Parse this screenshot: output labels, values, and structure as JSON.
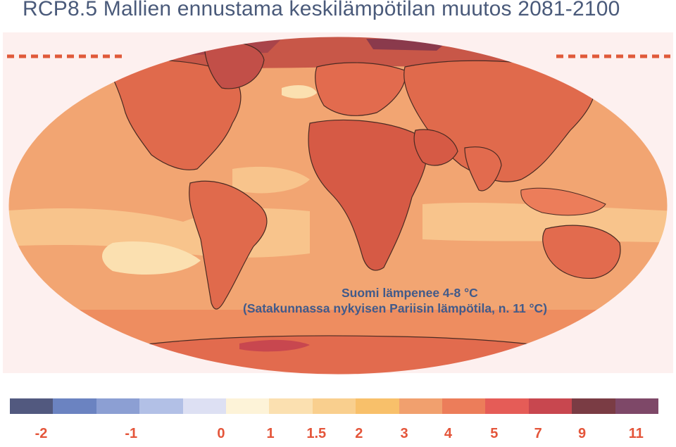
{
  "title": "RCP8.5 Mallien ennustama keskilämpötilan muutos 2081-2100",
  "annotation": {
    "line1": "Suomi lämpenee 4-8 °C",
    "line2": "(Satakunnassa nykyisen Pariisin lämpötila, n. 11 °C)"
  },
  "colors": {
    "ocean_warm": "#f8c48c",
    "ocean_mid": "#f3a877",
    "land_base": "#e8734f",
    "land_hot": "#d75a44",
    "arctic": "#8a3a4c",
    "outline": "#4a2a22",
    "dash": "#e05a3a",
    "page_pink": "#fdf0ef"
  },
  "legend": {
    "swatches": [
      "#52597f",
      "#6b83c1",
      "#8c9fd3",
      "#b2c0e6",
      "#dde0f3",
      "#fdf3d8",
      "#fbe0b0",
      "#f9cf8e",
      "#f8c06a",
      "#f1a06e",
      "#ec7d5a",
      "#e55c57",
      "#c8474f",
      "#7a3c44",
      "#7e4868"
    ],
    "ticks": [
      {
        "label": "-2",
        "pos": 0.061
      },
      {
        "label": "-1",
        "pos": 0.194
      },
      {
        "label": "0",
        "pos": 0.327
      },
      {
        "label": "1",
        "pos": 0.4
      },
      {
        "label": "1.5",
        "pos": 0.468
      },
      {
        "label": "2",
        "pos": 0.531
      },
      {
        "label": "3",
        "pos": 0.598
      },
      {
        "label": "4",
        "pos": 0.663
      },
      {
        "label": "5",
        "pos": 0.731
      },
      {
        "label": "7",
        "pos": 0.796
      },
      {
        "label": "9",
        "pos": 0.861
      },
      {
        "label": "11",
        "pos": 0.941
      }
    ]
  }
}
